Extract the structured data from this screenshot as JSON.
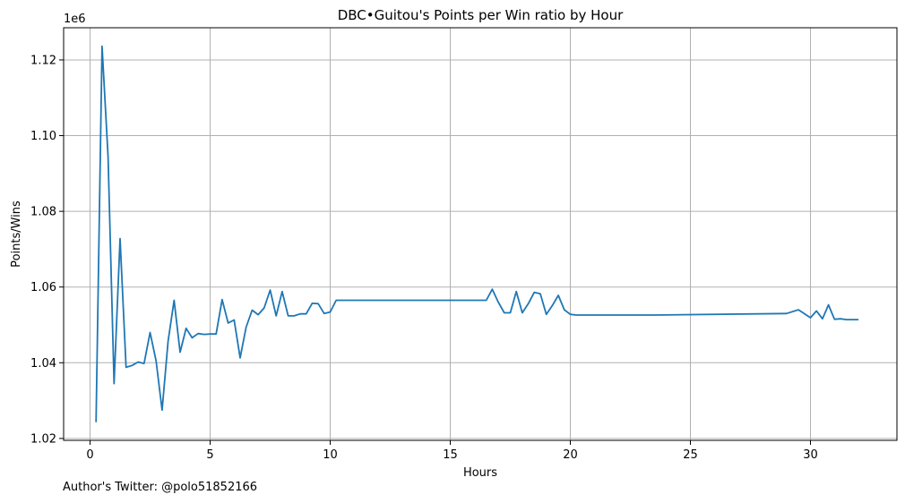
{
  "chart_data": {
    "type": "line",
    "title": "DBC•Guitou's Points per Win ratio by Hour",
    "xlabel": "Hours",
    "ylabel": "Points/Wins",
    "y_offset_label": "1e6",
    "xlim": [
      -1.1,
      33.6
    ],
    "ylim": [
      1.0195,
      1.1285
    ],
    "x_ticks": [
      0,
      5,
      10,
      15,
      20,
      25,
      30
    ],
    "x_tick_labels": [
      "0",
      "5",
      "10",
      "15",
      "20",
      "25",
      "30"
    ],
    "y_ticks": [
      1.02,
      1.04,
      1.06,
      1.08,
      1.1,
      1.12
    ],
    "y_tick_labels": [
      "1.02",
      "1.04",
      "1.06",
      "1.08",
      "1.10",
      "1.12"
    ],
    "grid": true,
    "series": [
      {
        "color": "#1f77b4",
        "x": [
          0.25,
          0.5,
          0.75,
          1.0,
          1.25,
          1.5,
          1.75,
          2.0,
          2.25,
          2.5,
          2.75,
          3.0,
          3.25,
          3.5,
          3.75,
          4.0,
          4.25,
          4.5,
          4.75,
          5.0,
          5.25,
          5.5,
          5.75,
          6.0,
          6.25,
          6.5,
          6.75,
          7.0,
          7.25,
          7.5,
          7.75,
          8.0,
          8.25,
          8.5,
          8.75,
          9.0,
          9.25,
          9.5,
          9.75,
          10.0,
          10.25,
          16.5,
          16.75,
          17.0,
          17.25,
          17.5,
          17.75,
          18.0,
          18.25,
          18.5,
          18.75,
          19.0,
          19.25,
          19.5,
          19.75,
          20.0,
          20.25,
          23.5,
          29.0,
          29.5,
          30.0,
          30.25,
          30.5,
          30.75,
          31.0,
          31.25,
          31.5,
          31.75,
          32.0
        ],
        "y": [
          1.0243,
          1.1236,
          1.0945,
          1.0345,
          1.0728,
          1.0388,
          1.0393,
          1.0402,
          1.0398,
          1.048,
          1.0405,
          1.0275,
          1.0457,
          1.0565,
          1.0428,
          1.0491,
          1.0466,
          1.0477,
          1.0475,
          1.0476,
          1.0476,
          1.0567,
          1.0505,
          1.0513,
          1.0413,
          1.0494,
          1.0539,
          1.0527,
          1.0545,
          1.0592,
          1.0524,
          1.0588,
          1.0524,
          1.0524,
          1.0529,
          1.0529,
          1.0557,
          1.0556,
          1.053,
          1.0534,
          1.0565,
          1.0565,
          1.0594,
          1.056,
          1.0532,
          1.0532,
          1.0588,
          1.0532,
          1.0556,
          1.0586,
          1.0582,
          1.0528,
          1.0551,
          1.0578,
          1.054,
          1.0528,
          1.0526,
          1.0526,
          1.053,
          1.054,
          1.0519,
          1.0537,
          1.0516,
          1.0553,
          1.0515,
          1.0516,
          1.0514,
          1.0514,
          1.0514
        ]
      }
    ]
  },
  "footer": {
    "note": "Author's Twitter: @polo51852166"
  }
}
